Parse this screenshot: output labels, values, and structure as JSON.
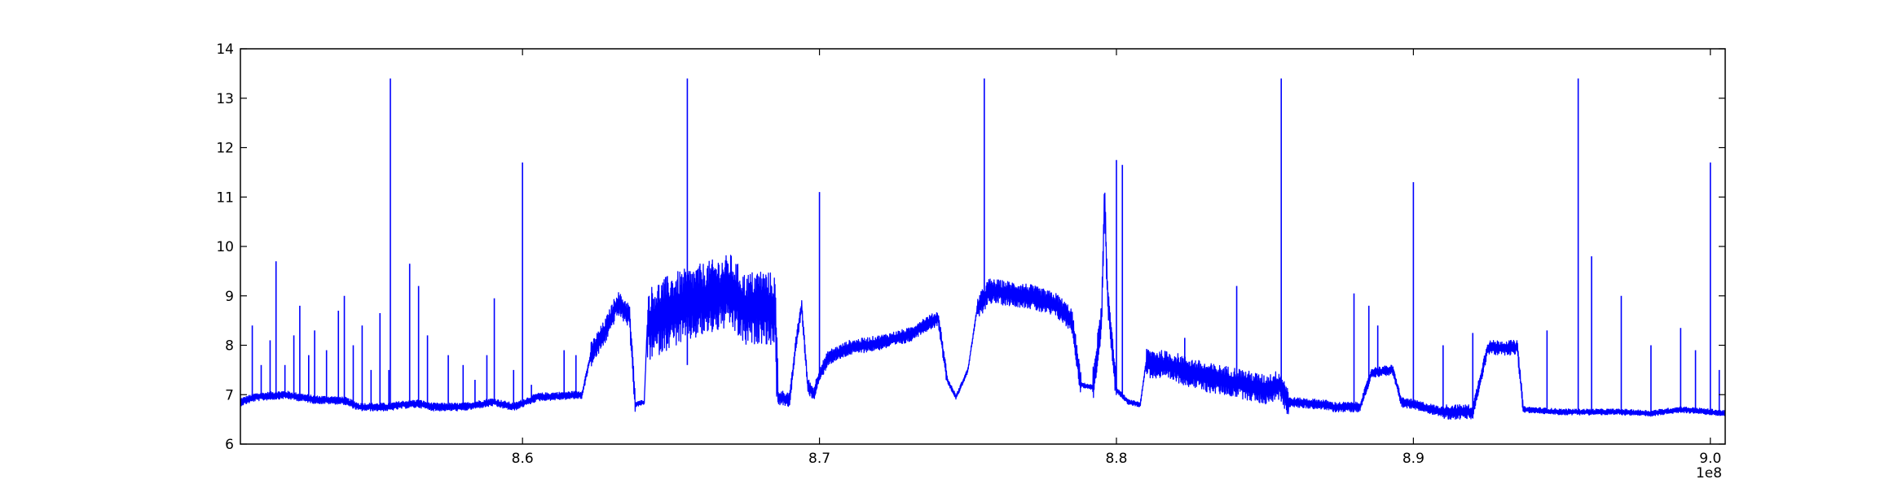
{
  "chart_data": {
    "type": "line",
    "title": "",
    "xlabel": "",
    "ylabel": "",
    "x_offset_label": "1e8",
    "xlim": [
      8.505,
      9.005
    ],
    "ylim": [
      6,
      14
    ],
    "x_ticks": [
      8.6,
      8.7,
      8.8,
      8.9,
      9.0
    ],
    "x_tick_labels": [
      "8.6",
      "8.7",
      "8.8",
      "8.9",
      "9.0"
    ],
    "y_ticks": [
      6,
      7,
      8,
      9,
      10,
      11,
      12,
      13,
      14
    ],
    "y_tick_labels": [
      "6",
      "7",
      "8",
      "9",
      "10",
      "11",
      "12",
      "13",
      "14"
    ],
    "grid": false,
    "line_color": "#0000ff",
    "series": [
      {
        "baseline": [
          [
            8.505,
            6.85
          ],
          [
            8.51,
            6.95
          ],
          [
            8.52,
            7.0
          ],
          [
            8.53,
            6.9
          ],
          [
            8.54,
            6.88
          ],
          [
            8.545,
            6.75
          ],
          [
            8.555,
            6.75
          ],
          [
            8.56,
            6.8
          ],
          [
            8.565,
            6.82
          ],
          [
            8.57,
            6.75
          ],
          [
            8.58,
            6.75
          ],
          [
            8.59,
            6.85
          ],
          [
            8.597,
            6.75
          ],
          [
            8.605,
            6.95
          ],
          [
            8.62,
            7.0
          ],
          [
            8.623,
            7.8
          ],
          [
            8.628,
            8.3
          ],
          [
            8.632,
            8.85
          ],
          [
            8.636,
            8.6
          ],
          [
            8.638,
            6.8
          ],
          [
            8.641,
            6.85
          ],
          [
            8.642,
            8.4
          ],
          [
            8.65,
            8.7
          ],
          [
            8.66,
            8.9
          ],
          [
            8.67,
            9.1
          ],
          [
            8.675,
            8.7
          ],
          [
            8.68,
            8.8
          ],
          [
            8.685,
            8.7
          ],
          [
            8.686,
            6.95
          ],
          [
            8.69,
            6.9
          ],
          [
            8.692,
            8.0
          ],
          [
            8.694,
            8.8
          ],
          [
            8.696,
            7.2
          ],
          [
            8.698,
            7.0
          ],
          [
            8.7,
            7.4
          ],
          [
            8.703,
            7.75
          ],
          [
            8.71,
            7.95
          ],
          [
            8.72,
            8.05
          ],
          [
            8.73,
            8.2
          ],
          [
            8.735,
            8.4
          ],
          [
            8.74,
            8.55
          ],
          [
            8.743,
            7.3
          ],
          [
            8.746,
            6.95
          ],
          [
            8.75,
            7.5
          ],
          [
            8.753,
            8.7
          ],
          [
            8.757,
            9.1
          ],
          [
            8.77,
            9.0
          ],
          [
            8.78,
            8.8
          ],
          [
            8.785,
            8.5
          ],
          [
            8.788,
            7.2
          ],
          [
            8.792,
            7.15
          ],
          [
            8.795,
            8.5
          ],
          [
            8.796,
            11.0
          ],
          [
            8.797,
            9.0
          ],
          [
            8.8,
            7.1
          ],
          [
            8.804,
            6.85
          ],
          [
            8.808,
            6.8
          ],
          [
            8.81,
            7.65
          ],
          [
            8.82,
            7.55
          ],
          [
            8.83,
            7.35
          ],
          [
            8.84,
            7.25
          ],
          [
            8.85,
            7.1
          ],
          [
            8.855,
            7.2
          ],
          [
            8.858,
            6.85
          ],
          [
            8.87,
            6.8
          ],
          [
            8.873,
            6.75
          ],
          [
            8.882,
            6.75
          ],
          [
            8.886,
            7.45
          ],
          [
            8.893,
            7.5
          ],
          [
            8.896,
            6.85
          ],
          [
            8.9,
            6.8
          ],
          [
            8.91,
            6.65
          ],
          [
            8.92,
            6.65
          ],
          [
            8.925,
            7.95
          ],
          [
            8.935,
            7.95
          ],
          [
            8.937,
            6.7
          ],
          [
            8.95,
            6.65
          ],
          [
            8.97,
            6.65
          ],
          [
            8.98,
            6.62
          ],
          [
            8.99,
            6.7
          ],
          [
            9.0,
            6.65
          ],
          [
            9.005,
            6.62
          ]
        ],
        "noise_bands": [
          [
            8.505,
            8.6,
            0.08
          ],
          [
            8.6,
            8.623,
            0.08
          ],
          [
            8.623,
            8.638,
            0.25
          ],
          [
            8.642,
            8.686,
            0.75
          ],
          [
            8.686,
            8.703,
            0.15
          ],
          [
            8.703,
            8.743,
            0.15
          ],
          [
            8.753,
            8.788,
            0.25
          ],
          [
            8.792,
            8.8,
            0.35
          ],
          [
            8.81,
            8.858,
            0.3
          ],
          [
            8.858,
            8.91,
            0.1
          ],
          [
            8.91,
            8.937,
            0.15
          ],
          [
            8.937,
            9.005,
            0.06
          ]
        ],
        "spikes": [
          [
            8.509,
            8.4
          ],
          [
            8.512,
            7.6
          ],
          [
            8.515,
            8.1
          ],
          [
            8.517,
            9.7
          ],
          [
            8.52,
            7.6
          ],
          [
            8.523,
            8.2
          ],
          [
            8.525,
            8.8
          ],
          [
            8.528,
            7.8
          ],
          [
            8.53,
            8.3
          ],
          [
            8.534,
            7.9
          ],
          [
            8.538,
            8.7
          ],
          [
            8.54,
            9.0
          ],
          [
            8.543,
            8.0
          ],
          [
            8.546,
            8.4
          ],
          [
            8.549,
            7.5
          ],
          [
            8.552,
            8.65
          ],
          [
            8.555,
            7.5
          ],
          [
            8.5555,
            13.4
          ],
          [
            8.562,
            9.65
          ],
          [
            8.565,
            9.2
          ],
          [
            8.568,
            8.2
          ],
          [
            8.575,
            7.8
          ],
          [
            8.58,
            7.6
          ],
          [
            8.584,
            7.3
          ],
          [
            8.588,
            7.8
          ],
          [
            8.5905,
            8.95
          ],
          [
            8.597,
            7.5
          ],
          [
            8.6,
            11.7
          ],
          [
            8.603,
            7.2
          ],
          [
            8.614,
            7.9
          ],
          [
            8.618,
            7.8
          ],
          [
            8.6555,
            13.4
          ],
          [
            8.6555,
            7.6
          ],
          [
            8.7,
            11.1
          ],
          [
            8.7555,
            13.4
          ],
          [
            8.8,
            11.75
          ],
          [
            8.802,
            11.65
          ],
          [
            8.823,
            8.15
          ],
          [
            8.8405,
            9.2
          ],
          [
            8.8555,
            13.4
          ],
          [
            8.88,
            9.05
          ],
          [
            8.885,
            8.8
          ],
          [
            8.888,
            8.4
          ],
          [
            8.9,
            11.3
          ],
          [
            8.91,
            8.0
          ],
          [
            8.92,
            8.25
          ],
          [
            8.945,
            8.3
          ],
          [
            8.9555,
            13.4
          ],
          [
            8.96,
            9.8
          ],
          [
            8.97,
            9.0
          ],
          [
            8.98,
            8.0
          ],
          [
            8.99,
            8.35
          ],
          [
            8.995,
            7.9
          ],
          [
            9.0,
            11.7
          ],
          [
            9.003,
            7.5
          ]
        ]
      }
    ]
  }
}
